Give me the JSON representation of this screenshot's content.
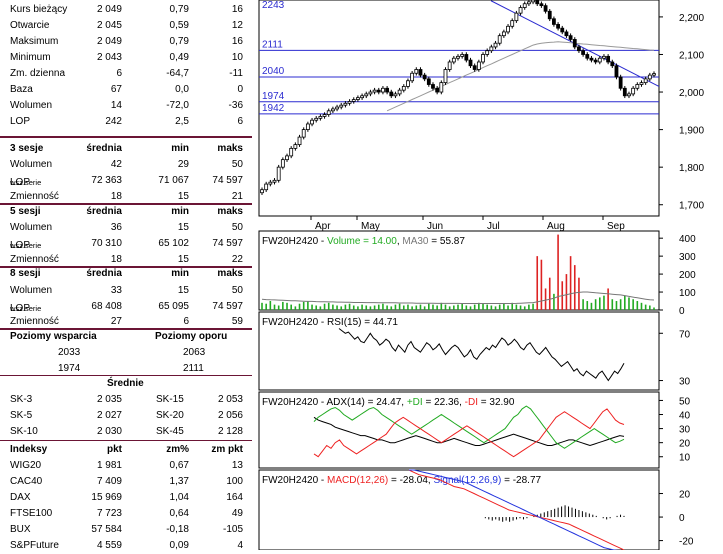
{
  "quote": [
    {
      "label": "Kurs bieżący",
      "v1": "2 049",
      "v2": "0,79",
      "v3": "16"
    },
    {
      "label": "Otwarcie",
      "v1": "2 045",
      "v2": "0,59",
      "v3": "12"
    },
    {
      "label": "Maksimum",
      "v1": "2 049",
      "v2": "0,79",
      "v3": "16"
    },
    {
      "label": "Minimum",
      "v1": "2 043",
      "v2": "0,49",
      "v3": "10"
    },
    {
      "label": "Zm. dzienna",
      "v1": "6",
      "v2": "-64,7",
      "v3": "-11"
    },
    {
      "label": "Baza",
      "v1": "67",
      "v2": "0,0",
      "v3": "0"
    },
    {
      "label": "Wolumen",
      "v1": "14",
      "v2": "-72,0",
      "v3": "-36"
    },
    {
      "label": "LOP",
      "v1": "242",
      "v2": "2,5",
      "v3": "6"
    }
  ],
  "sessions": [
    {
      "title": "3 sesje",
      "h1": "średnia",
      "h2": "min",
      "h3": "maks",
      "rows": [
        {
          "label": "Wolumen",
          "small": "",
          "v1": "42",
          "v2": "29",
          "v3": "50"
        },
        {
          "label": "LOP",
          "small": "wsz.serie",
          "v1": "72 363",
          "v2": "71 067",
          "v3": "74 597"
        },
        {
          "label": "Zmienność",
          "small": "",
          "v1": "18",
          "v2": "15",
          "v3": "21"
        }
      ]
    },
    {
      "title": "5 sesji",
      "h1": "średnia",
      "h2": "min",
      "h3": "maks",
      "rows": [
        {
          "label": "Wolumen",
          "small": "",
          "v1": "36",
          "v2": "15",
          "v3": "50"
        },
        {
          "label": "LOP",
          "small": "wsz.serie",
          "v1": "70 310",
          "v2": "65 102",
          "v3": "74 597"
        },
        {
          "label": "Zmienność",
          "small": "",
          "v1": "18",
          "v2": "15",
          "v3": "22"
        }
      ]
    },
    {
      "title": "8 sesji",
      "h1": "średnia",
      "h2": "min",
      "h3": "maks",
      "rows": [
        {
          "label": "Wolumen",
          "small": "",
          "v1": "33",
          "v2": "15",
          "v3": "50"
        },
        {
          "label": "LOP",
          "small": "wsz.serie",
          "v1": "68 408",
          "v2": "65 095",
          "v3": "74 597"
        },
        {
          "label": "Zmienność",
          "small": "",
          "v1": "27",
          "v2": "6",
          "v3": "59"
        }
      ]
    }
  ],
  "levels": {
    "support_title": "Poziomy wsparcia",
    "resistance_title": "Poziomy oporu",
    "rows": [
      {
        "s": "2033",
        "r": "2063"
      },
      {
        "s": "1974",
        "r": "2111"
      }
    ]
  },
  "averages": {
    "title": "Średnie",
    "rows": [
      {
        "l1": "SK-3",
        "v1": "2 035",
        "l2": "SK-15",
        "v2": "2 053"
      },
      {
        "l1": "SK-5",
        "v1": "2 027",
        "l2": "SK-20",
        "v2": "2 056"
      },
      {
        "l1": "SK-10",
        "v1": "2 030",
        "l2": "SK-45",
        "v2": "2 128"
      }
    ]
  },
  "indices": {
    "headers": {
      "h0": "Indeksy",
      "h1": "pkt",
      "h2": "zm%",
      "h3": "zm pkt"
    },
    "rows": [
      {
        "name": "WIG20",
        "v1": "1 981",
        "v2": "0,67",
        "v3": "13"
      },
      {
        "name": "CAC40",
        "v1": "7 409",
        "v2": "1,37",
        "v3": "100"
      },
      {
        "name": "DAX",
        "v1": "15 969",
        "v2": "1,04",
        "v3": "164"
      },
      {
        "name": "FTSE100",
        "v1": "7 723",
        "v2": "0,64",
        "v3": "49"
      },
      {
        "name": "BUX",
        "v1": "57 584",
        "v2": "-0,18",
        "v3": "-105"
      },
      {
        "name": "S&PFuture",
        "v1": "4 559",
        "v2": "0,09",
        "v3": "4"
      }
    ]
  },
  "colors": {
    "accent": "#6b1535",
    "level_line": "#2b2bd0",
    "volume_bar": "#22aa22",
    "volume_bar_hi": "#dd2222",
    "di_plus": "#22aa22",
    "di_minus": "#ee2222",
    "signal": "#2233dd",
    "ma_line": "#999999"
  },
  "chart_data": [
    {
      "type": "candlestick",
      "title": "",
      "months": [
        "Apr",
        "May",
        "Jun",
        "Jul",
        "Aug",
        "Sep"
      ],
      "y_ticks": [
        "1,700",
        "1,800",
        "1,900",
        "2,000",
        "2,100",
        "2,200"
      ],
      "ylim": [
        1670,
        2245
      ],
      "levels": [
        {
          "label": "2243",
          "value": 2243
        },
        {
          "label": "2111",
          "value": 2111
        },
        {
          "label": "2040",
          "value": 2040
        },
        {
          "label": "1974",
          "value": 1974
        },
        {
          "label": "1942",
          "value": 1942
        }
      ],
      "trendline": {
        "from": [
          0.58,
          2243
        ],
        "to": [
          1.0,
          2015
        ]
      },
      "close_series": [
        1740,
        1755,
        1760,
        1765,
        1800,
        1820,
        1830,
        1850,
        1860,
        1880,
        1900,
        1915,
        1925,
        1930,
        1935,
        1940,
        1950,
        1955,
        1960,
        1965,
        1970,
        1975,
        1980,
        1985,
        1990,
        1995,
        2000,
        2005,
        2000,
        2010,
        2000,
        1990,
        1995,
        2005,
        2015,
        2030,
        2050,
        2060,
        2045,
        2035,
        2020,
        2010,
        2000,
        2025,
        2060,
        2080,
        2090,
        2095,
        2100,
        2085,
        2070,
        2060,
        2080,
        2100,
        2110,
        2120,
        2130,
        2150,
        2160,
        2175,
        2190,
        2210,
        2225,
        2235,
        2240,
        2245,
        2235,
        2230,
        2215,
        2195,
        2180,
        2170,
        2160,
        2150,
        2140,
        2120,
        2110,
        2100,
        2090,
        2085,
        2080,
        2090,
        2095,
        2080,
        2070,
        2040,
        2010,
        1990,
        1995,
        2010,
        2020,
        2025,
        2035,
        2045,
        2049
      ],
      "ma_series": [
        null,
        null,
        null,
        null,
        null,
        null,
        null,
        null,
        null,
        null,
        null,
        null,
        null,
        null,
        null,
        null,
        null,
        null,
        null,
        null,
        null,
        null,
        null,
        null,
        null,
        null,
        null,
        null,
        null,
        null,
        1950,
        1955,
        1960,
        1965,
        1970,
        1975,
        1980,
        1985,
        1990,
        1995,
        2000,
        2005,
        2010,
        2015,
        2020,
        2025,
        2030,
        2035,
        2040,
        2045,
        2050,
        2055,
        2060,
        2065,
        2070,
        2075,
        2080,
        2085,
        2090,
        2095,
        2100,
        2105,
        2110,
        2115,
        2120,
        2125,
        2128,
        2130,
        2131,
        2132,
        2133,
        2134,
        2133,
        2132,
        2131,
        2130,
        2129,
        2128,
        2127,
        2126,
        2125,
        2124,
        2123,
        2122,
        2121,
        2120,
        2119,
        2118,
        2117,
        2116,
        2115,
        2114,
        2113,
        2112,
        2111
      ]
    },
    {
      "type": "bar",
      "title": "FW20H2420 - Volume = 14.00, MA30 = 55.87",
      "title_parts": [
        {
          "t": "FW20H2420 - ",
          "c": "#000"
        },
        {
          "t": "Volume = 14.00",
          "c": "#22aa22"
        },
        {
          "t": ", ",
          "c": "#000"
        },
        {
          "t": "MA30",
          "c": "#777"
        },
        {
          "t": " = 55.87",
          "c": "#000"
        }
      ],
      "y_ticks": [
        "0",
        "100",
        "200",
        "300",
        "400"
      ],
      "ylim": [
        0,
        440
      ],
      "values": [
        40,
        35,
        50,
        30,
        25,
        45,
        40,
        30,
        20,
        35,
        45,
        50,
        30,
        25,
        20,
        35,
        40,
        30,
        25,
        20,
        30,
        35,
        25,
        20,
        30,
        25,
        20,
        25,
        30,
        35,
        25,
        20,
        30,
        35,
        25,
        30,
        20,
        25,
        30,
        20,
        35,
        30,
        25,
        40,
        30,
        20,
        25,
        30,
        35,
        25,
        20,
        30,
        40,
        35,
        30,
        25,
        20,
        30,
        35,
        25,
        40,
        30,
        25,
        20,
        30,
        35,
        300,
        280,
        120,
        180,
        90,
        420,
        160,
        200,
        300,
        250,
        180,
        60,
        50,
        40,
        60,
        70,
        80,
        120,
        60,
        50,
        60,
        80,
        70,
        60,
        50,
        40,
        30,
        25,
        14
      ],
      "ma30": [
        60,
        58,
        57,
        56,
        55,
        54,
        53,
        52,
        51,
        50,
        49,
        48,
        48,
        47,
        46,
        46,
        45,
        45,
        44,
        44,
        43,
        43,
        42,
        42,
        42,
        41,
        41,
        41,
        40,
        40,
        40,
        40,
        40,
        39,
        39,
        39,
        39,
        38,
        38,
        38,
        38,
        38,
        37,
        37,
        37,
        37,
        37,
        37,
        36,
        36,
        36,
        36,
        36,
        36,
        36,
        36,
        36,
        36,
        36,
        36,
        36,
        37,
        38,
        39,
        40,
        41,
        45,
        50,
        55,
        60,
        65,
        75,
        80,
        85,
        90,
        95,
        98,
        100,
        100,
        98,
        96,
        94,
        92,
        90,
        88,
        86,
        84,
        80,
        76,
        72,
        68,
        64,
        60,
        57,
        55.87
      ]
    },
    {
      "type": "line",
      "title": "FW20H2420 - RSI(15) = 44.71",
      "y_ticks": [
        "30",
        "70"
      ],
      "ylim": [
        22,
        88
      ],
      "values": [
        74,
        72,
        70,
        71,
        68,
        65,
        67,
        63,
        62,
        66,
        70,
        66,
        64,
        60,
        62,
        65,
        63,
        58,
        55,
        60,
        57,
        54,
        60,
        63,
        58,
        56,
        54,
        58,
        62,
        60,
        56,
        58,
        61,
        56,
        52,
        55,
        58,
        60,
        58,
        54,
        50,
        52,
        56,
        50,
        48,
        52,
        55,
        58,
        56,
        60,
        58,
        62,
        66,
        64,
        60,
        62,
        65,
        62,
        58,
        56,
        60,
        62,
        58,
        54,
        52,
        55,
        58,
        54,
        50,
        48,
        45,
        42,
        44,
        46,
        42,
        38,
        40,
        36,
        34,
        38,
        36,
        34,
        32,
        36,
        38,
        34,
        30,
        34,
        38,
        36,
        40,
        44.71
      ]
    },
    {
      "type": "line",
      "title": "FW20H2420 - ADX(14) = 24.47, +DI = 22.36, -DI = 32.90",
      "title_parts": [
        {
          "t": "FW20H2420 - ",
          "c": "#000"
        },
        {
          "t": "ADX(14)",
          "c": "#000"
        },
        {
          "t": " = 24.47, ",
          "c": "#000"
        },
        {
          "t": "+DI",
          "c": "#22aa22"
        },
        {
          "t": " = 22.36, ",
          "c": "#000"
        },
        {
          "t": "-DI",
          "c": "#ee2222"
        },
        {
          "t": " = 32.90",
          "c": "#000"
        }
      ],
      "y_ticks": [
        "10",
        "20",
        "30",
        "40",
        "50"
      ],
      "ylim": [
        2,
        56
      ],
      "series": [
        {
          "name": "ADX(14)",
          "values": [
            38,
            36,
            35,
            34,
            33,
            31,
            30,
            29,
            28,
            27,
            26,
            25,
            25,
            24,
            23,
            22,
            22,
            21,
            20,
            20,
            21,
            22,
            23,
            24,
            25,
            24,
            23,
            22,
            21,
            20,
            20,
            21,
            22,
            23,
            22,
            21,
            20,
            19,
            18,
            18,
            19,
            20,
            21,
            22,
            23,
            24,
            25,
            26,
            25,
            24,
            23,
            22,
            21,
            20,
            19,
            18,
            18,
            19,
            20,
            21,
            22,
            22,
            21,
            20,
            19,
            18,
            19,
            20,
            21,
            22,
            23,
            24,
            25,
            24.47
          ]
        },
        {
          "name": "+DI",
          "values": [
            35,
            38,
            40,
            42,
            44,
            45,
            43,
            40,
            38,
            36,
            38,
            40,
            42,
            44,
            45,
            43,
            40,
            38,
            36,
            34,
            32,
            30,
            28,
            26,
            28,
            30,
            32,
            34,
            36,
            38,
            40,
            38,
            36,
            34,
            32,
            30,
            28,
            26,
            24,
            22,
            20,
            22,
            24,
            26,
            28,
            30,
            34,
            38,
            40,
            44,
            46,
            44,
            40,
            36,
            32,
            28,
            24,
            20,
            18,
            16,
            18,
            20,
            22,
            24,
            26,
            28,
            30,
            28,
            26,
            24,
            22,
            20,
            21,
            22.36
          ]
        },
        {
          "name": "-DI",
          "values": [
            12,
            10,
            14,
            18,
            16,
            20,
            22,
            18,
            16,
            14,
            12,
            14,
            16,
            18,
            20,
            22,
            24,
            26,
            30,
            34,
            36,
            38,
            36,
            34,
            32,
            30,
            28,
            26,
            24,
            22,
            20,
            22,
            24,
            26,
            28,
            30,
            32,
            30,
            28,
            26,
            24,
            22,
            20,
            18,
            16,
            14,
            12,
            10,
            12,
            14,
            16,
            18,
            20,
            22,
            26,
            30,
            34,
            38,
            40,
            42,
            40,
            38,
            36,
            34,
            32,
            30,
            34,
            38,
            42,
            44,
            40,
            36,
            34,
            32.9
          ]
        }
      ]
    },
    {
      "type": "line",
      "title": "FW20H2420 - MACD(12,26) = -28.04, Signal(12,26,9) = -28.77",
      "title_parts": [
        {
          "t": "FW20H2420 - ",
          "c": "#000"
        },
        {
          "t": "MACD(12,26)",
          "c": "#ee2222"
        },
        {
          "t": " = -28.04, ",
          "c": "#000"
        },
        {
          "t": "Signal(12,26,9)",
          "c": "#2233dd"
        },
        {
          "t": " = -28.77",
          "c": "#000"
        }
      ],
      "y_ticks": [
        "-20",
        "0",
        "20"
      ],
      "ylim": [
        -28,
        40
      ],
      "series": [
        {
          "name": "MACD(12,26)",
          "values": [
            40,
            38,
            36,
            35,
            34,
            33,
            32,
            30,
            28,
            26,
            25,
            24,
            22,
            20,
            18,
            16,
            14,
            12,
            10,
            8,
            6,
            5,
            4,
            3,
            2,
            1,
            0,
            -1,
            -2,
            -3,
            -4,
            -5,
            -6,
            -8,
            -10,
            -12,
            -14,
            -16,
            -18,
            -20,
            -22,
            -24,
            -26,
            -28.04
          ]
        },
        {
          "name": "Signal(12,26,9)",
          "values": [
            40,
            40,
            39,
            38,
            37,
            36,
            35,
            34,
            33,
            32,
            31,
            30,
            28,
            26,
            24,
            22,
            20,
            18,
            16,
            14,
            12,
            10,
            8,
            6,
            4,
            2,
            0,
            -2,
            -4,
            -6,
            -8,
            -10,
            -12,
            -14,
            -16,
            -18,
            -20,
            -22,
            -24,
            -26,
            -27,
            -28,
            -28.5,
            -28.77
          ]
        }
      ],
      "histogram": [
        0,
        0,
        0,
        0,
        0,
        0,
        0,
        0,
        0,
        0,
        0,
        0,
        0,
        0,
        0,
        0,
        0,
        0,
        0,
        0,
        0,
        0,
        0,
        0,
        0,
        0,
        0,
        0,
        0,
        0,
        0,
        0,
        0,
        0,
        0,
        -1,
        -2,
        -3,
        -2,
        -3,
        -4,
        -3,
        -4,
        -3,
        -2,
        -1,
        -2,
        -1,
        0,
        1,
        2,
        3,
        4,
        5,
        6,
        7,
        8,
        9,
        10,
        9,
        8,
        7,
        6,
        5,
        4,
        3,
        2,
        1,
        0,
        -1,
        -2,
        -1,
        0,
        1,
        2,
        1
      ]
    }
  ]
}
